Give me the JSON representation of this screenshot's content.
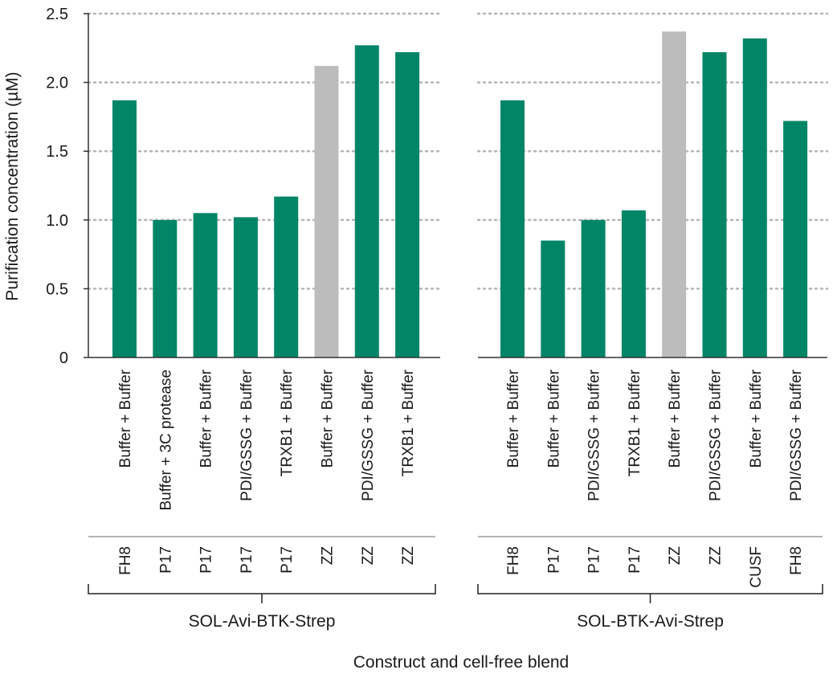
{
  "colors": {
    "primary": "#008566",
    "highlight": "#bcbcbc",
    "grid": "#b5b5b5",
    "axis": "#333333",
    "bracket": "#222222"
  },
  "chart_data": {
    "type": "bar",
    "ylabel": "Purification concentration (µM)",
    "xlabel": "Construct and cell-free blend",
    "ylim": [
      0,
      2.5
    ],
    "yticks": [
      0,
      0.5,
      1.0,
      1.5,
      2.0,
      2.5
    ],
    "ytick_labels": [
      "0",
      "0.5",
      "1.0",
      "1.5",
      "2.0",
      "2.5"
    ],
    "grid": true,
    "panels": [
      {
        "construct": "SOL-Avi-BTK-Strep",
        "categories": [
          "Buffer + Buffer",
          "Buffer + 3C protease",
          "Buffer + Buffer",
          "PDI/GSSG + Buffer",
          "TRXB1 + Buffer",
          "Buffer + Buffer",
          "PDI/GSSG + Buffer",
          "TRXB1 + Buffer"
        ],
        "blends": [
          "FH8",
          "P17",
          "P17",
          "P17",
          "P17",
          "ZZ",
          "ZZ",
          "ZZ"
        ],
        "values": [
          1.87,
          1.0,
          1.05,
          1.02,
          1.17,
          2.12,
          2.27,
          2.22
        ],
        "highlight": [
          false,
          false,
          false,
          false,
          false,
          true,
          false,
          false
        ]
      },
      {
        "construct": "SOL-BTK-Avi-Strep",
        "categories": [
          "Buffer + Buffer",
          "Buffer + Buffer",
          "PDI/GSSG + Buffer",
          "TRXB1 + Buffer",
          "Buffer + Buffer",
          "PDI/GSSG + Buffer",
          "Buffer + Buffer",
          "PDI/GSSG + Buffer"
        ],
        "blends": [
          "FH8",
          "P17",
          "P17",
          "P17",
          "ZZ",
          "ZZ",
          "CUSF",
          "FH8"
        ],
        "values": [
          1.87,
          0.85,
          1.0,
          1.07,
          2.37,
          2.22,
          2.32,
          1.72
        ],
        "highlight": [
          false,
          false,
          false,
          false,
          true,
          false,
          false,
          false
        ]
      }
    ]
  }
}
